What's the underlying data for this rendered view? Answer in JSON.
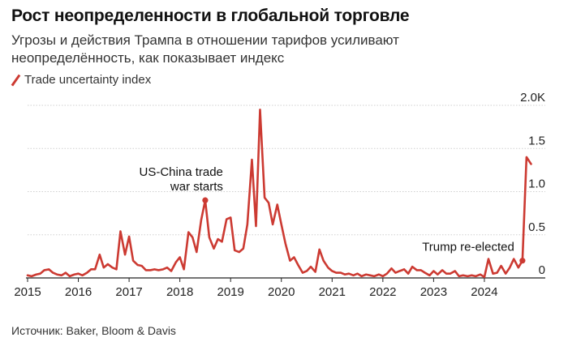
{
  "header": {
    "title": "Рост неопределенности в глобальной торговле",
    "subtitle": "Угрозы и действия Трампа в отношении тарифов усиливают неопределённость, как показывает индекс"
  },
  "legend": {
    "label": "Trade uncertainty index"
  },
  "footer": {
    "source": "Источник: Baker, Bloom & Davis"
  },
  "colors": {
    "series": "#cc3a32",
    "grid": "#cfcfcf",
    "axis": "#222222"
  },
  "chart_data": {
    "type": "line",
    "title": "Рост неопределенности в глобальной торговле",
    "xlabel": "",
    "ylabel": "",
    "xlim": [
      2015,
      2025.2
    ],
    "ylim": [
      0,
      2.0
    ],
    "y_ticks": [
      {
        "value": 2.0,
        "label": "2.0K"
      },
      {
        "value": 1.5,
        "label": "1.5"
      },
      {
        "value": 1.0,
        "label": "1.0"
      },
      {
        "value": 0.5,
        "label": "0.5"
      },
      {
        "value": 0,
        "label": "0"
      }
    ],
    "x_ticks": [
      {
        "value": 2015,
        "label": "2015"
      },
      {
        "value": 2016,
        "label": "2016"
      },
      {
        "value": 2017,
        "label": "2017"
      },
      {
        "value": 2018,
        "label": "2018"
      },
      {
        "value": 2019,
        "label": "2019"
      },
      {
        "value": 2020,
        "label": "2020"
      },
      {
        "value": 2021,
        "label": "2021"
      },
      {
        "value": 2022,
        "label": "2022"
      },
      {
        "value": 2023,
        "label": "2023"
      },
      {
        "value": 2024,
        "label": "2024"
      }
    ],
    "series": [
      {
        "name": "Trade uncertainty index",
        "points": [
          [
            2015.0,
            0.03
          ],
          [
            2015.08,
            0.02
          ],
          [
            2015.17,
            0.04
          ],
          [
            2015.25,
            0.05
          ],
          [
            2015.33,
            0.09
          ],
          [
            2015.42,
            0.1
          ],
          [
            2015.5,
            0.06
          ],
          [
            2015.58,
            0.04
          ],
          [
            2015.67,
            0.03
          ],
          [
            2015.75,
            0.06
          ],
          [
            2015.83,
            0.02
          ],
          [
            2015.92,
            0.04
          ],
          [
            2016.0,
            0.05
          ],
          [
            2016.08,
            0.03
          ],
          [
            2016.17,
            0.06
          ],
          [
            2016.25,
            0.1
          ],
          [
            2016.33,
            0.1
          ],
          [
            2016.42,
            0.27
          ],
          [
            2016.5,
            0.12
          ],
          [
            2016.58,
            0.16
          ],
          [
            2016.67,
            0.12
          ],
          [
            2016.75,
            0.1
          ],
          [
            2016.83,
            0.54
          ],
          [
            2016.92,
            0.27
          ],
          [
            2017.0,
            0.48
          ],
          [
            2017.08,
            0.2
          ],
          [
            2017.17,
            0.15
          ],
          [
            2017.25,
            0.14
          ],
          [
            2017.33,
            0.09
          ],
          [
            2017.42,
            0.09
          ],
          [
            2017.5,
            0.1
          ],
          [
            2017.58,
            0.09
          ],
          [
            2017.67,
            0.1
          ],
          [
            2017.75,
            0.12
          ],
          [
            2017.83,
            0.08
          ],
          [
            2017.92,
            0.18
          ],
          [
            2018.0,
            0.24
          ],
          [
            2018.08,
            0.1
          ],
          [
            2018.17,
            0.53
          ],
          [
            2018.25,
            0.47
          ],
          [
            2018.33,
            0.3
          ],
          [
            2018.42,
            0.67
          ],
          [
            2018.5,
            0.9
          ],
          [
            2018.58,
            0.47
          ],
          [
            2018.67,
            0.34
          ],
          [
            2018.75,
            0.45
          ],
          [
            2018.83,
            0.42
          ],
          [
            2018.92,
            0.68
          ],
          [
            2019.0,
            0.7
          ],
          [
            2019.08,
            0.32
          ],
          [
            2019.17,
            0.3
          ],
          [
            2019.25,
            0.34
          ],
          [
            2019.33,
            0.62
          ],
          [
            2019.42,
            1.37
          ],
          [
            2019.5,
            0.6
          ],
          [
            2019.58,
            1.95
          ],
          [
            2019.67,
            0.93
          ],
          [
            2019.75,
            0.87
          ],
          [
            2019.83,
            0.62
          ],
          [
            2019.92,
            0.85
          ],
          [
            2020.0,
            0.62
          ],
          [
            2020.08,
            0.4
          ],
          [
            2020.17,
            0.2
          ],
          [
            2020.25,
            0.24
          ],
          [
            2020.33,
            0.15
          ],
          [
            2020.42,
            0.06
          ],
          [
            2020.5,
            0.08
          ],
          [
            2020.58,
            0.13
          ],
          [
            2020.67,
            0.07
          ],
          [
            2020.75,
            0.33
          ],
          [
            2020.83,
            0.2
          ],
          [
            2020.92,
            0.12
          ],
          [
            2021.0,
            0.08
          ],
          [
            2021.08,
            0.06
          ],
          [
            2021.17,
            0.06
          ],
          [
            2021.25,
            0.04
          ],
          [
            2021.33,
            0.05
          ],
          [
            2021.42,
            0.03
          ],
          [
            2021.5,
            0.05
          ],
          [
            2021.58,
            0.02
          ],
          [
            2021.67,
            0.04
          ],
          [
            2021.75,
            0.03
          ],
          [
            2021.83,
            0.02
          ],
          [
            2021.92,
            0.04
          ],
          [
            2022.0,
            0.02
          ],
          [
            2022.08,
            0.05
          ],
          [
            2022.17,
            0.11
          ],
          [
            2022.25,
            0.06
          ],
          [
            2022.33,
            0.08
          ],
          [
            2022.42,
            0.1
          ],
          [
            2022.5,
            0.05
          ],
          [
            2022.58,
            0.13
          ],
          [
            2022.67,
            0.09
          ],
          [
            2022.75,
            0.09
          ],
          [
            2022.83,
            0.06
          ],
          [
            2022.92,
            0.03
          ],
          [
            2023.0,
            0.08
          ],
          [
            2023.08,
            0.04
          ],
          [
            2023.17,
            0.09
          ],
          [
            2023.25,
            0.05
          ],
          [
            2023.33,
            0.05
          ],
          [
            2023.42,
            0.08
          ],
          [
            2023.5,
            0.02
          ],
          [
            2023.58,
            0.03
          ],
          [
            2023.67,
            0.02
          ],
          [
            2023.75,
            0.03
          ],
          [
            2023.83,
            0.02
          ],
          [
            2023.92,
            0.04
          ],
          [
            2024.0,
            0.01
          ],
          [
            2024.08,
            0.22
          ],
          [
            2024.17,
            0.05
          ],
          [
            2024.25,
            0.06
          ],
          [
            2024.33,
            0.14
          ],
          [
            2024.42,
            0.05
          ],
          [
            2024.5,
            0.12
          ],
          [
            2024.58,
            0.22
          ],
          [
            2024.67,
            0.12
          ],
          [
            2024.75,
            0.2
          ],
          [
            2024.83,
            1.4
          ],
          [
            2024.92,
            1.32
          ]
        ]
      }
    ],
    "annotations": [
      {
        "label_lines": [
          "US-China trade",
          "war starts"
        ],
        "point": [
          2018.5,
          0.9
        ],
        "anchor": "end"
      },
      {
        "label_lines": [
          "Trump re-elected"
        ],
        "point": [
          2024.75,
          0.2
        ],
        "anchor": "end"
      }
    ]
  }
}
